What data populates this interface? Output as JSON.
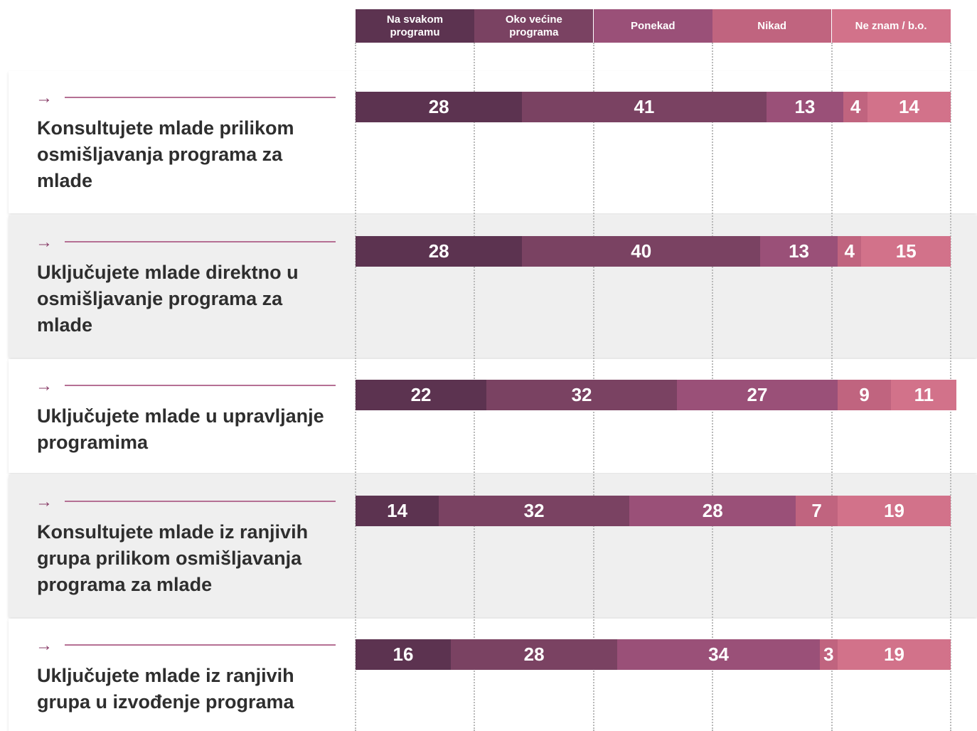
{
  "chart_data": {
    "type": "stacked-bar-horizontal",
    "categories": [
      "Konsultujete mlade prilikom osmišljavanja programa za mlade",
      "Uključujete mlade direktno u osmišljavanje programa za mlade",
      "Uključujete mlade u upravljanje programima",
      "Konsultujete mlade iz ranjivih grupa prilikom osmišljavanja programa za mlade",
      "Uključujete mlade iz ranjivih grupa u izvođenje programa"
    ],
    "series": [
      {
        "name": "Na svakom programu",
        "color": "#5c3350",
        "values": [
          28,
          28,
          22,
          14,
          16
        ]
      },
      {
        "name": "Oko većine programa",
        "color": "#7a4262",
        "values": [
          41,
          40,
          32,
          32,
          28
        ]
      },
      {
        "name": "Ponekad",
        "color": "#9a5078",
        "values": [
          13,
          13,
          27,
          28,
          34
        ]
      },
      {
        "name": "Nikad",
        "color": "#c0647f",
        "values": [
          4,
          4,
          9,
          7,
          3
        ]
      },
      {
        "name": "Ne znam / b.o.",
        "color": "#d2728a",
        "values": [
          14,
          15,
          11,
          19,
          19
        ]
      }
    ]
  }
}
